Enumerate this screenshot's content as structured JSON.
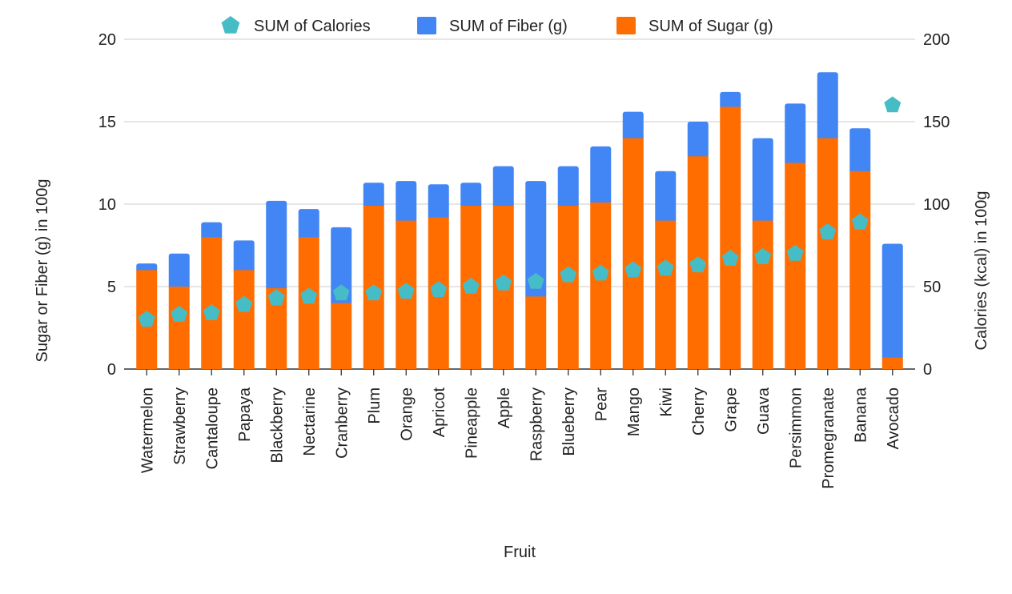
{
  "chart_data": {
    "type": "bar",
    "stacked": true,
    "xlabel": "Fruit",
    "ylabel_left": "Sugar or Fiber (g) in 100g",
    "ylabel_right": "Calories (kcal) in 100g",
    "ylim_left": [
      0,
      20
    ],
    "ylim_right": [
      0,
      200
    ],
    "yticks_left": [
      "0",
      "5",
      "10",
      "15",
      "20"
    ],
    "yticks_right": [
      "0",
      "50",
      "100",
      "150",
      "200"
    ],
    "grid": true,
    "legend_position": "top",
    "categories": [
      "Watermelon",
      "Strawberry",
      "Cantaloupe",
      "Papaya",
      "Blackberry",
      "Nectarine",
      "Cranberry",
      "Plum",
      "Orange",
      "Apricot",
      "Pineapple",
      "Apple",
      "Raspberry",
      "Blueberry",
      "Pear",
      "Mango",
      "Kiwi",
      "Cherry",
      "Grape",
      "Guava",
      "Persimmon",
      "Promegranate",
      "Banana",
      "Avocado"
    ],
    "series": [
      {
        "name": "SUM of Sugar (g)",
        "kind": "bar",
        "axis": "left",
        "color": "#ff6d01",
        "values": [
          6.0,
          5.0,
          8.0,
          6.0,
          4.9,
          8.0,
          4.0,
          9.9,
          9.0,
          9.2,
          9.9,
          9.9,
          4.4,
          9.9,
          10.1,
          14.0,
          9.0,
          12.9,
          15.9,
          9.0,
          12.5,
          14.0,
          12.0,
          0.7
        ]
      },
      {
        "name": "SUM of Fiber (g)",
        "kind": "bar",
        "axis": "left",
        "color": "#4285f4",
        "values": [
          0.4,
          2.0,
          0.9,
          1.8,
          5.3,
          1.7,
          4.6,
          1.4,
          2.4,
          2.0,
          1.4,
          2.4,
          7.0,
          2.4,
          3.4,
          1.6,
          3.0,
          2.1,
          0.9,
          5.0,
          3.6,
          4.0,
          2.6,
          6.9
        ]
      },
      {
        "name": "SUM of Calories",
        "kind": "marker",
        "marker": "pentagon",
        "axis": "right",
        "color": "#46bdc6",
        "values": [
          30,
          33,
          34,
          39,
          43,
          44,
          46,
          46,
          47,
          48,
          50,
          52,
          53,
          57,
          58,
          60,
          61,
          63,
          67,
          68,
          70,
          83,
          89,
          160
        ]
      }
    ]
  }
}
